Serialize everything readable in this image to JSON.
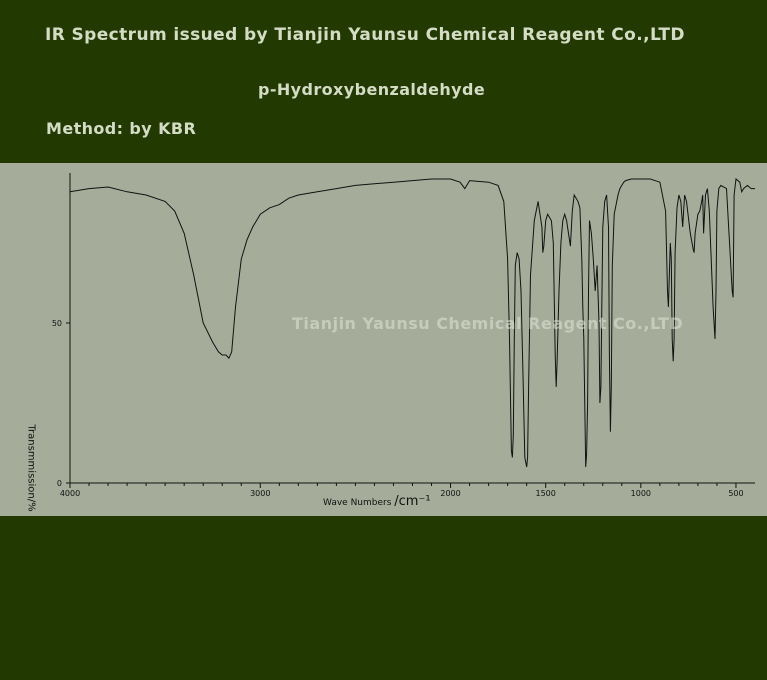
{
  "header": {
    "title": "IR Spectrum issued by Tianjin Yaunsu Chemical Reagent Co.,LTD",
    "compound": "p-Hydroxybenzaldehyde",
    "method": "Method: by KBR"
  },
  "watermark": "Tianjin Yaunsu Chemical Reagent Co.,LTD",
  "colors": {
    "background": "#223a02",
    "plot_panel": "#a5ad9a",
    "trace": "#111111"
  },
  "chart_data": {
    "type": "line",
    "title": "",
    "xlabel": "Wave Numbers",
    "xlabel_unit": "/cm⁻¹",
    "ylabel": "Transmmission/%",
    "xlim": [
      4000,
      400
    ],
    "ylim": [
      0,
      100
    ],
    "x_ticks": [
      4000,
      3000,
      2000,
      1500,
      1000,
      500
    ],
    "y_ticks": [
      0,
      50
    ],
    "grid": false,
    "series": [
      {
        "x": [
          4000,
          3900,
          3800,
          3700,
          3600,
          3500,
          3450,
          3400,
          3350,
          3300,
          3250,
          3220,
          3200,
          3180,
          3165,
          3150,
          3130,
          3100,
          3070,
          3040,
          3000,
          2950,
          2900,
          2850,
          2800,
          2700,
          2600,
          2500,
          2400,
          2300,
          2200,
          2100,
          2000,
          1950,
          1925,
          1900,
          1800,
          1750,
          1720,
          1700,
          1690,
          1680,
          1675,
          1670,
          1665,
          1660,
          1650,
          1640,
          1630,
          1620,
          1610,
          1600,
          1595,
          1590,
          1580,
          1560,
          1540,
          1520,
          1515,
          1510,
          1500,
          1490,
          1470,
          1460,
          1450,
          1445,
          1440,
          1430,
          1420,
          1410,
          1400,
          1390,
          1380,
          1370,
          1360,
          1350,
          1330,
          1320,
          1310,
          1305,
          1300,
          1290,
          1285,
          1280,
          1275,
          1270,
          1260,
          1250,
          1240,
          1230,
          1220,
          1215,
          1210,
          1205,
          1200,
          1190,
          1180,
          1170,
          1165,
          1160,
          1155,
          1150,
          1140,
          1120,
          1110,
          1100,
          1090,
          1080,
          1050,
          1000,
          950,
          900,
          870,
          860,
          855,
          845,
          840,
          835,
          830,
          825,
          820,
          810,
          800,
          790,
          780,
          770,
          760,
          740,
          725,
          720,
          715,
          700,
          690,
          680,
          675,
          670,
          660,
          650,
          640,
          620,
          610,
          605,
          600,
          590,
          580,
          550,
          520,
          515,
          510,
          500,
          480,
          470,
          460,
          440,
          420,
          400
        ],
        "y": [
          91,
          92,
          92.5,
          91,
          90,
          88,
          85,
          78,
          65,
          50,
          44,
          41,
          40,
          40,
          39,
          41,
          55,
          70,
          76,
          80,
          84,
          86,
          87,
          89,
          90,
          91,
          92,
          93,
          93.5,
          94,
          94.5,
          95,
          95,
          94,
          92,
          94.5,
          94,
          93,
          88,
          70,
          45,
          10,
          8,
          15,
          45,
          68,
          72,
          70,
          60,
          35,
          8,
          5,
          8,
          30,
          65,
          82,
          88,
          80,
          72,
          74,
          82,
          84,
          82,
          75,
          40,
          30,
          38,
          60,
          75,
          82,
          84,
          82,
          78,
          74,
          85,
          90,
          88,
          86,
          70,
          55,
          45,
          5,
          9,
          25,
          60,
          82,
          78,
          70,
          60,
          68,
          50,
          25,
          30,
          55,
          80,
          88,
          90,
          80,
          40,
          16,
          30,
          68,
          84,
          90,
          92,
          93,
          94,
          94.5,
          95,
          95,
          95,
          94,
          85,
          60,
          55,
          75,
          70,
          45,
          38,
          45,
          72,
          86,
          90,
          88,
          80,
          90,
          88,
          78,
          73,
          72,
          78,
          84,
          85,
          88,
          90,
          78,
          90,
          92,
          85,
          55,
          45,
          60,
          85,
          92,
          93,
          92,
          60,
          58,
          90,
          95,
          94,
          91,
          92,
          93,
          92,
          92
        ]
      }
    ]
  }
}
